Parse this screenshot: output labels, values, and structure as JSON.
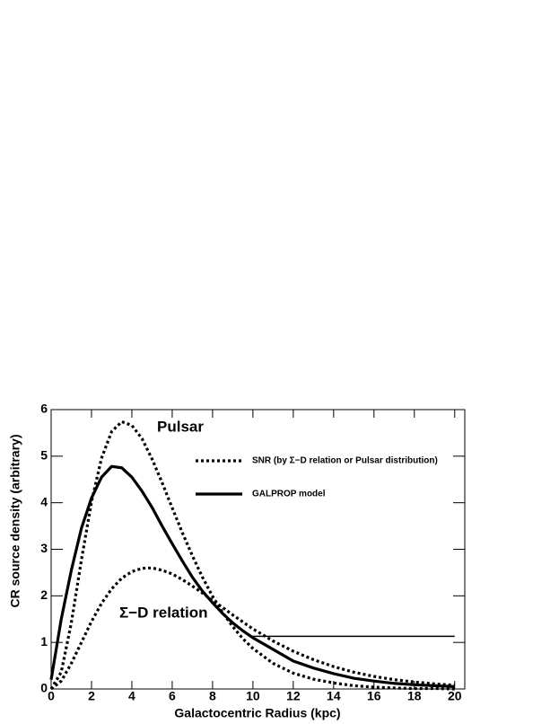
{
  "chart_data": {
    "type": "line",
    "x_label": "Galactocentric Radius (kpc)",
    "y_label": "CR source density (arbitrary)",
    "annotations": [
      "Pulsar",
      "Σ−D relation"
    ],
    "x": [
      0,
      0.5,
      1,
      1.5,
      2,
      2.5,
      3,
      3.5,
      4,
      4.5,
      5,
      5.5,
      6,
      6.5,
      7,
      7.5,
      8,
      8.5,
      9,
      9.5,
      10,
      11,
      12,
      13,
      14,
      15,
      16,
      17,
      18,
      19,
      20
    ],
    "series": [
      {
        "name": "SNR (by Σ−D relation or Pulsar distribution)",
        "color": "#000000",
        "style": "dotted",
        "values": [
          0,
          0.36,
          1.42,
          2.77,
          4.02,
          4.96,
          5.53,
          5.74,
          5.66,
          5.38,
          4.94,
          4.43,
          3.89,
          3.36,
          2.86,
          2.4,
          1.99,
          1.64,
          1.34,
          1.08,
          0.87,
          0.55,
          0.34,
          0.21,
          0.13,
          0.07,
          0.04,
          0.02,
          0.01,
          0.01,
          0
        ]
      },
      {
        "name": "GALPROP model",
        "color": "#000000",
        "style": "solid",
        "values": [
          0.2,
          1.5,
          2.55,
          3.45,
          4.1,
          4.55,
          4.78,
          4.75,
          4.55,
          4.25,
          3.9,
          3.5,
          3.12,
          2.75,
          2.4,
          2.1,
          1.85,
          1.62,
          1.42,
          1.25,
          1.1,
          0.85,
          0.6,
          0.45,
          0.33,
          0.23,
          0.17,
          0.12,
          0.09,
          0.07,
          0.05
        ]
      },
      {
        "color": "#000000",
        "style": "dotted",
        "values": [
          0,
          0.17,
          0.55,
          1.0,
          1.45,
          1.84,
          2.15,
          2.38,
          2.52,
          2.59,
          2.6,
          2.55,
          2.47,
          2.35,
          2.21,
          2.06,
          1.9,
          1.75,
          1.59,
          1.44,
          1.29,
          1.03,
          0.81,
          0.63,
          0.48,
          0.36,
          0.27,
          0.2,
          0.15,
          0.11,
          0.08
        ]
      },
      {
        "color": "#000000",
        "style": "thin",
        "values": [
          null,
          null,
          null,
          null,
          null,
          null,
          null,
          null,
          null,
          null,
          null,
          null,
          null,
          null,
          null,
          null,
          null,
          null,
          null,
          null,
          1.13,
          1.13,
          1.13,
          1.13,
          1.13,
          1.13,
          1.13,
          1.13,
          1.13,
          1.13,
          1.13
        ]
      }
    ],
    "xlim": [
      0,
      20.5
    ],
    "ylim": [
      0,
      6
    ],
    "xticks": [
      0,
      2,
      4,
      6,
      8,
      10,
      12,
      14,
      16,
      18,
      20
    ],
    "yticks": [
      0,
      1,
      2,
      3,
      4,
      5,
      6
    ]
  }
}
